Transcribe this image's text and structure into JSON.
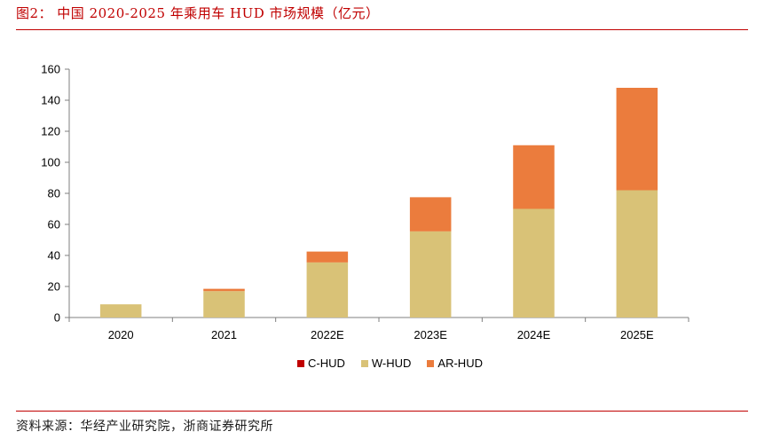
{
  "title": "图2：  中国 2020-2025 年乘用车 HUD 市场规模（亿元）",
  "source": "资料来源：华经产业研究院，浙商证券研究所",
  "colors": {
    "C-HUD": "#c00000",
    "W-HUD": "#d9c277",
    "AR-HUD": "#eb7c3d",
    "rule": "#c00000"
  },
  "chart_data": {
    "type": "bar",
    "stacked": true,
    "categories": [
      "2020",
      "2021",
      "2022E",
      "2023E",
      "2024E",
      "2025E"
    ],
    "series": [
      {
        "name": "C-HUD",
        "values": [
          0,
          0,
          0,
          0,
          0,
          0
        ]
      },
      {
        "name": "W-HUD",
        "values": [
          8.5,
          17,
          35.5,
          55.5,
          70,
          82
        ]
      },
      {
        "name": "AR-HUD",
        "values": [
          0,
          1.5,
          7,
          22,
          41,
          66
        ]
      }
    ],
    "yticks": [
      0,
      20,
      40,
      60,
      80,
      100,
      120,
      140,
      160
    ],
    "ylim": [
      0,
      160
    ],
    "legend_position": "bottom",
    "grid": false
  }
}
